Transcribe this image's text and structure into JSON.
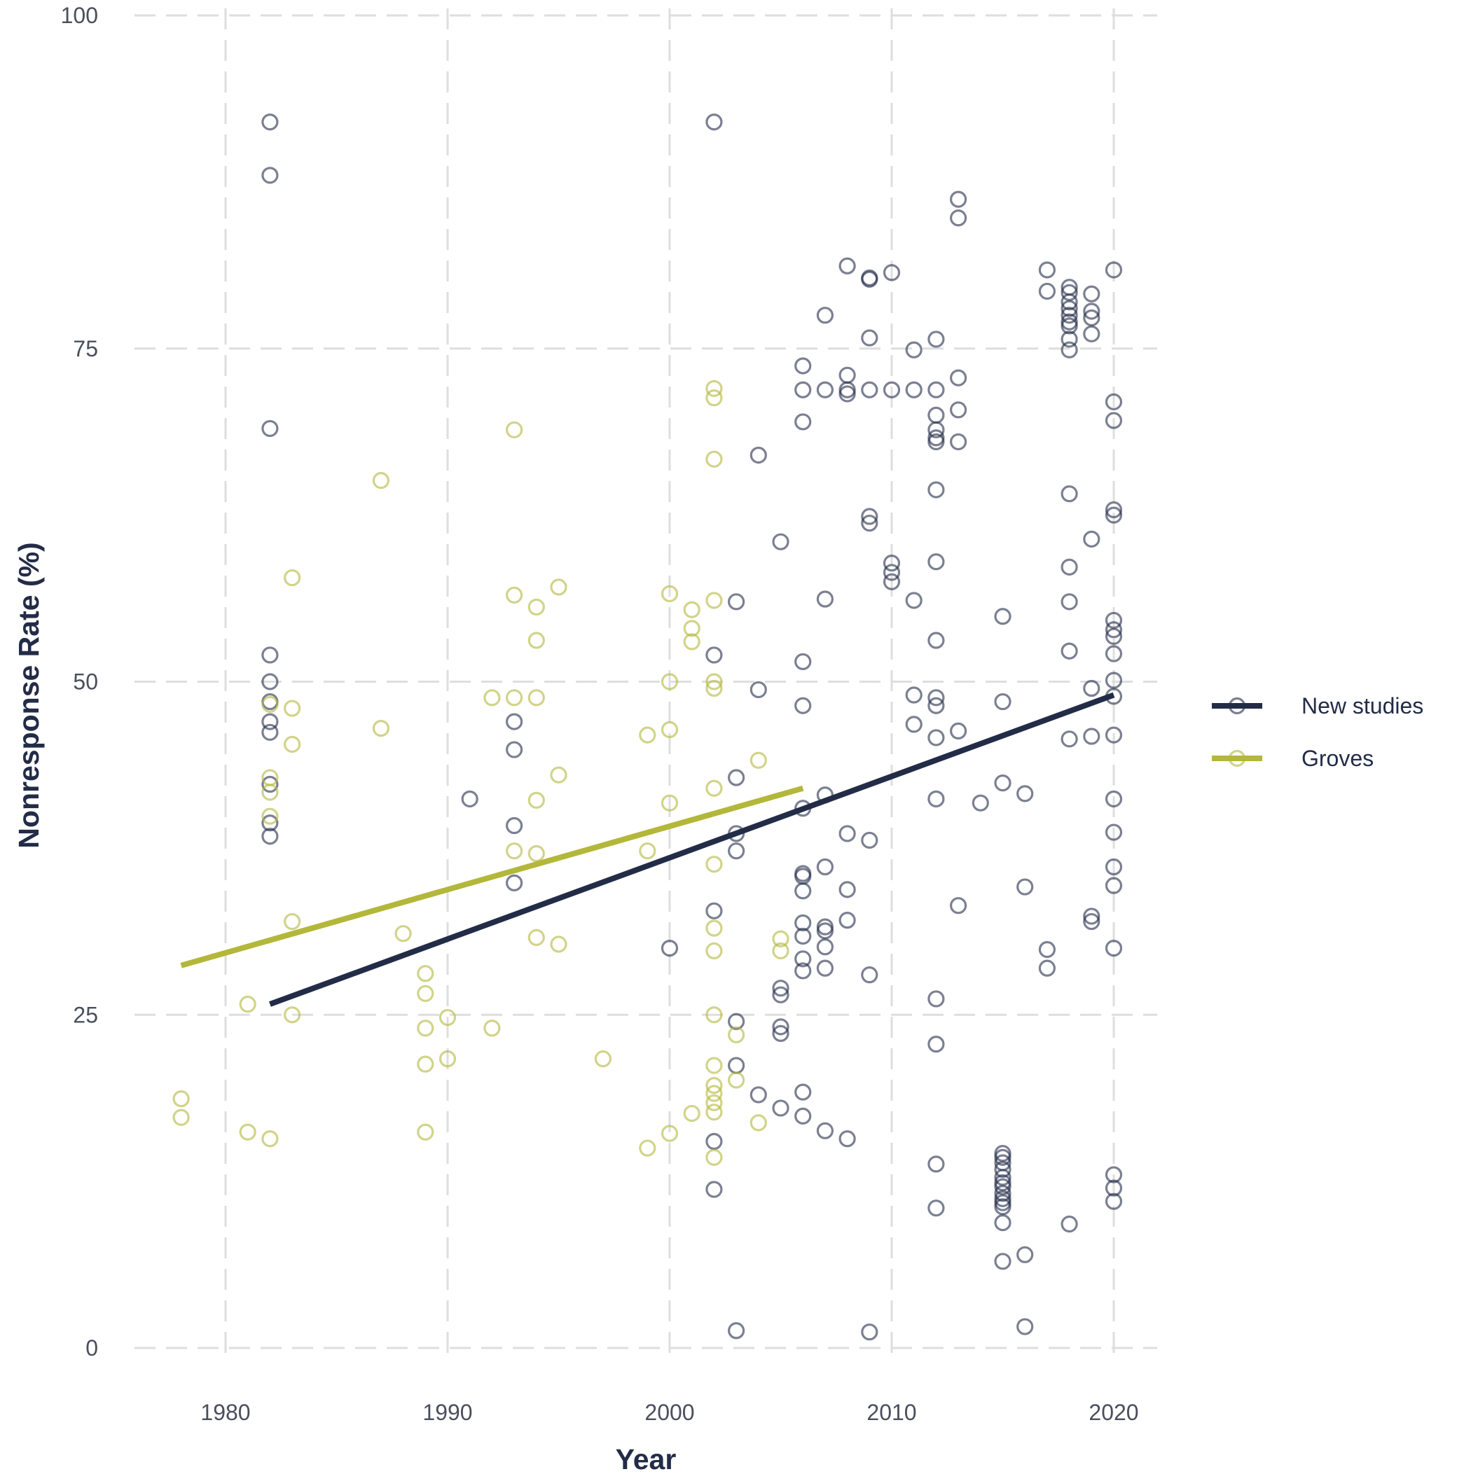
{
  "chart_data": {
    "type": "scatter",
    "title": "",
    "xlabel": "Year",
    "ylabel": "Nonresponse Rate (%)",
    "xlim": [
      1976,
      2022
    ],
    "ylim": [
      0,
      100
    ],
    "x_ticks": [
      1980,
      1990,
      2000,
      2010,
      2020
    ],
    "y_ticks": [
      0,
      25,
      50,
      75,
      100
    ],
    "grid": true,
    "legend_position": "right",
    "series": [
      {
        "name": "New studies",
        "color": "#232c47",
        "trend": [
          [
            1982,
            25.8
          ],
          [
            2020,
            49.0
          ]
        ],
        "points": [
          [
            1982,
            92.0
          ],
          [
            1982,
            88.0
          ],
          [
            1982,
            69.0
          ],
          [
            1982,
            52.0
          ],
          [
            1982,
            50.0
          ],
          [
            1982,
            48.5
          ],
          [
            1982,
            47.0
          ],
          [
            1982,
            46.2
          ],
          [
            1982,
            42.3
          ],
          [
            1982,
            39.4
          ],
          [
            1982,
            38.4
          ],
          [
            1991,
            41.2
          ],
          [
            1993,
            47.0
          ],
          [
            1993,
            44.9
          ],
          [
            1993,
            39.2
          ],
          [
            1993,
            34.9
          ],
          [
            2000,
            30.0
          ],
          [
            2002,
            92.0
          ],
          [
            2002,
            52.0
          ],
          [
            2002,
            32.8
          ],
          [
            2002,
            15.5
          ],
          [
            2002,
            11.9
          ],
          [
            2003,
            56.0
          ],
          [
            2003,
            42.8
          ],
          [
            2003,
            38.6
          ],
          [
            2003,
            37.3
          ],
          [
            2003,
            24.5
          ],
          [
            2003,
            21.2
          ],
          [
            2003,
            1.3
          ],
          [
            2004,
            67.0
          ],
          [
            2004,
            49.4
          ],
          [
            2004,
            19.0
          ],
          [
            2005,
            60.5
          ],
          [
            2005,
            27.0
          ],
          [
            2005,
            26.5
          ],
          [
            2005,
            24.1
          ],
          [
            2005,
            23.6
          ],
          [
            2005,
            18.0
          ],
          [
            2006,
            73.7
          ],
          [
            2006,
            71.9
          ],
          [
            2006,
            69.5
          ],
          [
            2006,
            51.5
          ],
          [
            2006,
            48.2
          ],
          [
            2006,
            40.5
          ],
          [
            2006,
            35.6
          ],
          [
            2006,
            35.4
          ],
          [
            2006,
            34.3
          ],
          [
            2006,
            31.9
          ],
          [
            2006,
            30.9
          ],
          [
            2006,
            29.2
          ],
          [
            2006,
            28.3
          ],
          [
            2006,
            19.2
          ],
          [
            2006,
            17.4
          ],
          [
            2007,
            77.5
          ],
          [
            2007,
            71.9
          ],
          [
            2007,
            56.2
          ],
          [
            2007,
            41.5
          ],
          [
            2007,
            36.1
          ],
          [
            2007,
            31.6
          ],
          [
            2007,
            31.3
          ],
          [
            2007,
            30.1
          ],
          [
            2007,
            28.5
          ],
          [
            2007,
            16.3
          ],
          [
            2008,
            81.2
          ],
          [
            2008,
            73.0
          ],
          [
            2008,
            71.9
          ],
          [
            2008,
            71.6
          ],
          [
            2008,
            38.6
          ],
          [
            2008,
            34.4
          ],
          [
            2008,
            32.1
          ],
          [
            2008,
            15.7
          ],
          [
            2009,
            80.3
          ],
          [
            2009,
            80.2
          ],
          [
            2009,
            75.8
          ],
          [
            2009,
            71.9
          ],
          [
            2009,
            62.4
          ],
          [
            2009,
            61.9
          ],
          [
            2009,
            38.1
          ],
          [
            2009,
            28.0
          ],
          [
            2009,
            1.2
          ],
          [
            2010,
            80.7
          ],
          [
            2010,
            71.9
          ],
          [
            2010,
            58.9
          ],
          [
            2010,
            58.2
          ],
          [
            2010,
            57.5
          ],
          [
            2011,
            74.9
          ],
          [
            2011,
            71.9
          ],
          [
            2011,
            56.1
          ],
          [
            2011,
            49.0
          ],
          [
            2011,
            46.8
          ],
          [
            2012,
            75.7
          ],
          [
            2012,
            71.9
          ],
          [
            2012,
            70.0
          ],
          [
            2012,
            68.9
          ],
          [
            2012,
            68.3
          ],
          [
            2012,
            68.0
          ],
          [
            2012,
            64.4
          ],
          [
            2012,
            59.0
          ],
          [
            2012,
            53.1
          ],
          [
            2012,
            48.8
          ],
          [
            2012,
            48.2
          ],
          [
            2012,
            45.8
          ],
          [
            2012,
            41.2
          ],
          [
            2012,
            26.2
          ],
          [
            2012,
            22.8
          ],
          [
            2012,
            13.8
          ],
          [
            2012,
            10.5
          ],
          [
            2013,
            86.2
          ],
          [
            2013,
            84.8
          ],
          [
            2013,
            72.8
          ],
          [
            2013,
            70.4
          ],
          [
            2013,
            68.0
          ],
          [
            2013,
            46.3
          ],
          [
            2013,
            33.2
          ],
          [
            2014,
            40.9
          ],
          [
            2015,
            54.9
          ],
          [
            2015,
            48.5
          ],
          [
            2015,
            42.4
          ],
          [
            2015,
            14.6
          ],
          [
            2015,
            14.3
          ],
          [
            2015,
            13.9
          ],
          [
            2015,
            13.4
          ],
          [
            2015,
            12.8
          ],
          [
            2015,
            12.4
          ],
          [
            2015,
            12.1
          ],
          [
            2015,
            11.6
          ],
          [
            2015,
            11.2
          ],
          [
            2015,
            10.9
          ],
          [
            2015,
            10.6
          ],
          [
            2015,
            9.4
          ],
          [
            2015,
            6.5
          ],
          [
            2016,
            41.6
          ],
          [
            2016,
            34.6
          ],
          [
            2016,
            7.0
          ],
          [
            2016,
            1.6
          ],
          [
            2017,
            80.9
          ],
          [
            2017,
            79.3
          ],
          [
            2017,
            29.9
          ],
          [
            2017,
            28.5
          ],
          [
            2018,
            79.6
          ],
          [
            2018,
            79.2
          ],
          [
            2018,
            78.5
          ],
          [
            2018,
            78.0
          ],
          [
            2018,
            77.5
          ],
          [
            2018,
            77.0
          ],
          [
            2018,
            76.7
          ],
          [
            2018,
            75.7
          ],
          [
            2018,
            74.9
          ],
          [
            2018,
            64.1
          ],
          [
            2018,
            58.6
          ],
          [
            2018,
            56.0
          ],
          [
            2018,
            52.3
          ],
          [
            2018,
            45.7
          ],
          [
            2018,
            9.3
          ],
          [
            2019,
            79.1
          ],
          [
            2019,
            77.8
          ],
          [
            2019,
            77.3
          ],
          [
            2019,
            76.1
          ],
          [
            2019,
            60.7
          ],
          [
            2019,
            49.5
          ],
          [
            2019,
            45.9
          ],
          [
            2019,
            32.4
          ],
          [
            2019,
            32.0
          ],
          [
            2020,
            80.9
          ],
          [
            2020,
            71.0
          ],
          [
            2020,
            69.6
          ],
          [
            2020,
            62.9
          ],
          [
            2020,
            62.5
          ],
          [
            2020,
            54.6
          ],
          [
            2020,
            53.9
          ],
          [
            2020,
            53.4
          ],
          [
            2020,
            52.1
          ],
          [
            2020,
            50.1
          ],
          [
            2020,
            48.9
          ],
          [
            2020,
            46.0
          ],
          [
            2020,
            41.2
          ],
          [
            2020,
            38.7
          ],
          [
            2020,
            36.1
          ],
          [
            2020,
            34.7
          ],
          [
            2020,
            30.0
          ],
          [
            2020,
            13.0
          ],
          [
            2020,
            12.0
          ],
          [
            2020,
            11.0
          ]
        ]
      },
      {
        "name": "Groves",
        "color": "#b3b73a",
        "trend": [
          [
            1978,
            28.7
          ],
          [
            2006,
            42.0
          ]
        ],
        "points": [
          [
            1978,
            18.7
          ],
          [
            1978,
            17.3
          ],
          [
            1981,
            25.8
          ],
          [
            1981,
            16.2
          ],
          [
            1982,
            48.3
          ],
          [
            1982,
            42.8
          ],
          [
            1982,
            41.7
          ],
          [
            1982,
            39.9
          ],
          [
            1982,
            15.7
          ],
          [
            1983,
            57.8
          ],
          [
            1983,
            48.0
          ],
          [
            1983,
            45.3
          ],
          [
            1983,
            32.0
          ],
          [
            1983,
            25.0
          ],
          [
            1987,
            65.1
          ],
          [
            1987,
            46.5
          ],
          [
            1988,
            31.1
          ],
          [
            1989,
            28.1
          ],
          [
            1989,
            26.6
          ],
          [
            1989,
            24.0
          ],
          [
            1989,
            21.3
          ],
          [
            1989,
            16.2
          ],
          [
            1990,
            24.8
          ],
          [
            1990,
            21.7
          ],
          [
            1992,
            48.8
          ],
          [
            1992,
            24.0
          ],
          [
            1993,
            68.9
          ],
          [
            1993,
            56.5
          ],
          [
            1993,
            48.8
          ],
          [
            1993,
            37.3
          ],
          [
            1994,
            55.6
          ],
          [
            1994,
            53.1
          ],
          [
            1994,
            48.8
          ],
          [
            1994,
            41.1
          ],
          [
            1994,
            37.1
          ],
          [
            1994,
            30.8
          ],
          [
            1995,
            57.1
          ],
          [
            1995,
            43.0
          ],
          [
            1995,
            30.3
          ],
          [
            1997,
            21.7
          ],
          [
            1999,
            46.0
          ],
          [
            1999,
            37.3
          ],
          [
            1999,
            15.0
          ],
          [
            2000,
            56.6
          ],
          [
            2000,
            50.0
          ],
          [
            2000,
            46.4
          ],
          [
            2000,
            40.9
          ],
          [
            2000,
            16.1
          ],
          [
            2001,
            55.4
          ],
          [
            2001,
            54.0
          ],
          [
            2001,
            53.0
          ],
          [
            2001,
            17.6
          ],
          [
            2002,
            72.0
          ],
          [
            2002,
            71.3
          ],
          [
            2002,
            66.7
          ],
          [
            2002,
            56.1
          ],
          [
            2002,
            50.0
          ],
          [
            2002,
            49.5
          ],
          [
            2002,
            42.0
          ],
          [
            2002,
            36.3
          ],
          [
            2002,
            31.5
          ],
          [
            2002,
            29.8
          ],
          [
            2002,
            25.0
          ],
          [
            2002,
            21.2
          ],
          [
            2002,
            19.7
          ],
          [
            2002,
            19.1
          ],
          [
            2002,
            18.4
          ],
          [
            2002,
            17.7
          ],
          [
            2002,
            14.3
          ],
          [
            2003,
            23.5
          ],
          [
            2003,
            20.1
          ],
          [
            2004,
            44.1
          ],
          [
            2004,
            16.9
          ],
          [
            2005,
            30.7
          ],
          [
            2005,
            29.8
          ]
        ]
      }
    ]
  }
}
